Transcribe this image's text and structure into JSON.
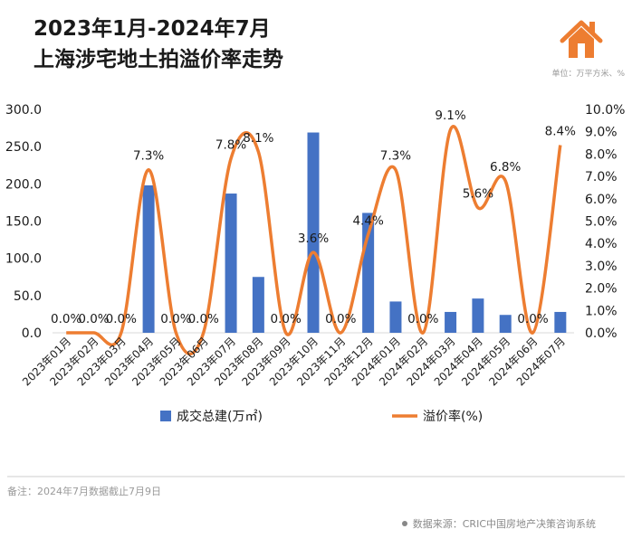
{
  "header": {
    "title_line1": "2023年1月-2024年7月",
    "title_line2": "上海涉宅地土拍溢价率走势",
    "unit": "单位：万平方米、%",
    "logo_icon": "house-icon"
  },
  "footer": {
    "note": "备注：2024年7月数据截止7月9日",
    "source": "数据来源：CRIC中国房地产决策咨询系统"
  },
  "colors": {
    "bar": "#4472C4",
    "line": "#ED7D31",
    "axis": "#d9d9d9",
    "text": "#1a1a1a"
  },
  "chart_data": {
    "type": "bar+line",
    "categories": [
      "2023年01月",
      "2023年02月",
      "2023年03月",
      "2023年04月",
      "2023年05月",
      "2023年06月",
      "2023年07月",
      "2023年08月",
      "2023年09月",
      "2023年10月",
      "2023年11月",
      "2023年12月",
      "2024年01月",
      "2024年02月",
      "2024年03月",
      "2024年04月",
      "2024年05月",
      "2024年06月",
      "2024年07月"
    ],
    "series": [
      {
        "name": "成交总建(万㎡)",
        "type": "bar",
        "axis": "left",
        "values": [
          0,
          0,
          0,
          198,
          0,
          0,
          187,
          75,
          0,
          269,
          0,
          161,
          42,
          0,
          28,
          46,
          24,
          0,
          28
        ]
      },
      {
        "name": "溢价率(%)",
        "type": "line",
        "axis": "right",
        "values": [
          0.0,
          0.0,
          0.0,
          7.3,
          0.0,
          0.0,
          7.8,
          8.1,
          0.0,
          3.6,
          0.0,
          4.4,
          7.3,
          0.0,
          9.1,
          5.6,
          6.8,
          0.0,
          8.4
        ],
        "labels": [
          "0.0%",
          "0.0%",
          "0.0%",
          "7.3%",
          "0.0%",
          "0.0%",
          "7.8%",
          "8.1%",
          "0.0%",
          "3.6%",
          "0.0%",
          "4.4%",
          "7.3%",
          "0.0%",
          "9.1%",
          "5.6%",
          "6.8%",
          "0.0%",
          "8.4%"
        ]
      }
    ],
    "y_left": {
      "range": [
        0,
        300
      ],
      "ticks": [
        "0.0",
        "50.0",
        "100.0",
        "150.0",
        "200.0",
        "250.0",
        "300.0"
      ]
    },
    "y_right": {
      "range": [
        0,
        10
      ],
      "ticks": [
        "0.0%",
        "1.0%",
        "2.0%",
        "3.0%",
        "4.0%",
        "5.0%",
        "6.0%",
        "7.0%",
        "8.0%",
        "9.0%",
        "10.0%"
      ]
    },
    "legend": {
      "position": "bottom",
      "items": [
        "成交总建(万㎡)",
        "溢价率(%)"
      ]
    }
  }
}
